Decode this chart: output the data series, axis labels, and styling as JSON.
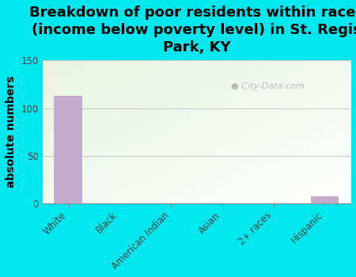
{
  "title": "Breakdown of poor residents within races\n(income below poverty level) in St. Regis\nPark, KY",
  "categories": [
    "White",
    "Black",
    "American Indian",
    "Asian",
    "2+ races",
    "Hispanic"
  ],
  "values": [
    113,
    0,
    0,
    0,
    0,
    7
  ],
  "bar_color": "#c4aed0",
  "ylabel": "absolute numbers",
  "ylim": [
    0,
    150
  ],
  "yticks": [
    0,
    50,
    100,
    150
  ],
  "background_color": "#00e8ee",
  "plot_bg_color": "#e8f5e0",
  "watermark": "City-Data.com",
  "title_fontsize": 13,
  "ylabel_fontsize": 10,
  "tick_fontsize": 8.5,
  "grid_color": "#cccccc"
}
